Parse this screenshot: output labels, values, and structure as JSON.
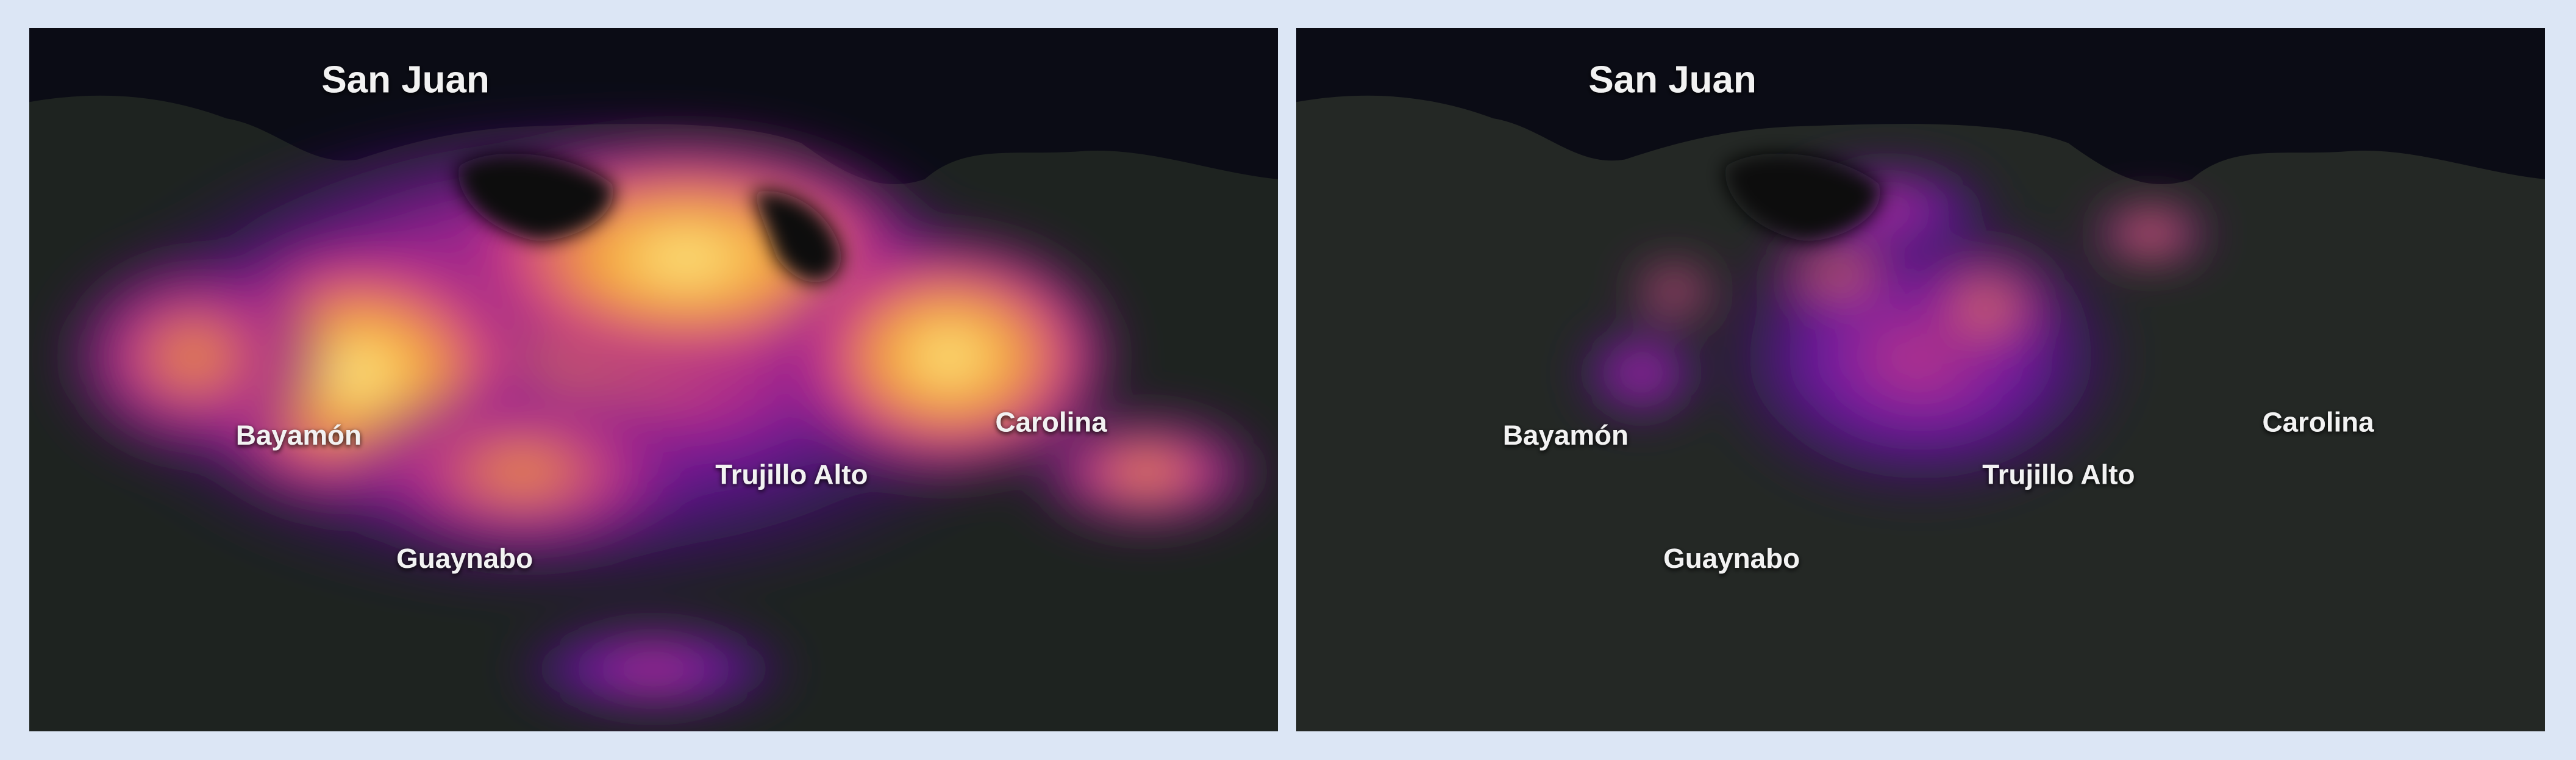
{
  "panels": [
    {
      "labels": [
        "San Juan",
        "Bayamón",
        "Guaynabo",
        "Trujillo Alto",
        "Carolina"
      ]
    },
    {
      "labels": [
        "San Juan",
        "Bayamón",
        "Guaynabo",
        "Trujillo Alto",
        "Carolina"
      ]
    }
  ]
}
